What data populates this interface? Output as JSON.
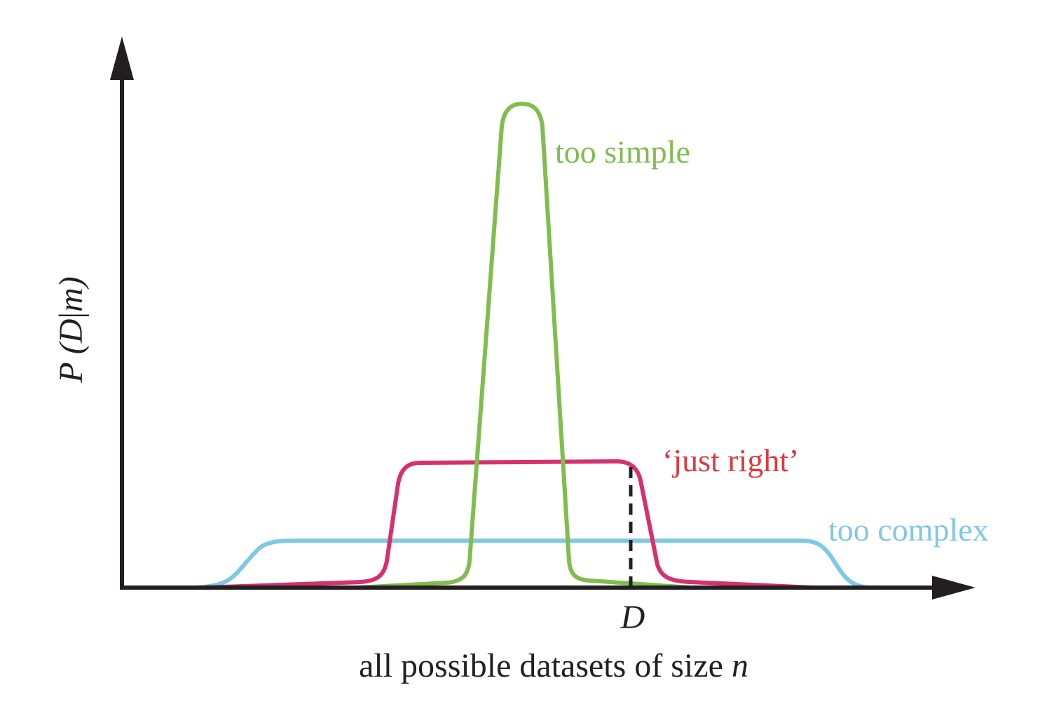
{
  "diagram": {
    "y_axis_label": {
      "prefix": "P (",
      "variable": "D",
      "separator": "|",
      "given": "m",
      "suffix": ")"
    },
    "x_axis_label": {
      "text": "all possible datasets of size ",
      "variable": "n"
    },
    "marker_label": "D",
    "curves": [
      {
        "id": "too-simple",
        "label": "too simple",
        "color": "#80bd4f"
      },
      {
        "id": "just-right",
        "label": "‘just right’",
        "label_color": "#e03a3e",
        "color": "#d6306f"
      },
      {
        "id": "too-complex",
        "label": "too complex",
        "color": "#7ec8e8"
      }
    ],
    "axis_color": "#231f20"
  }
}
